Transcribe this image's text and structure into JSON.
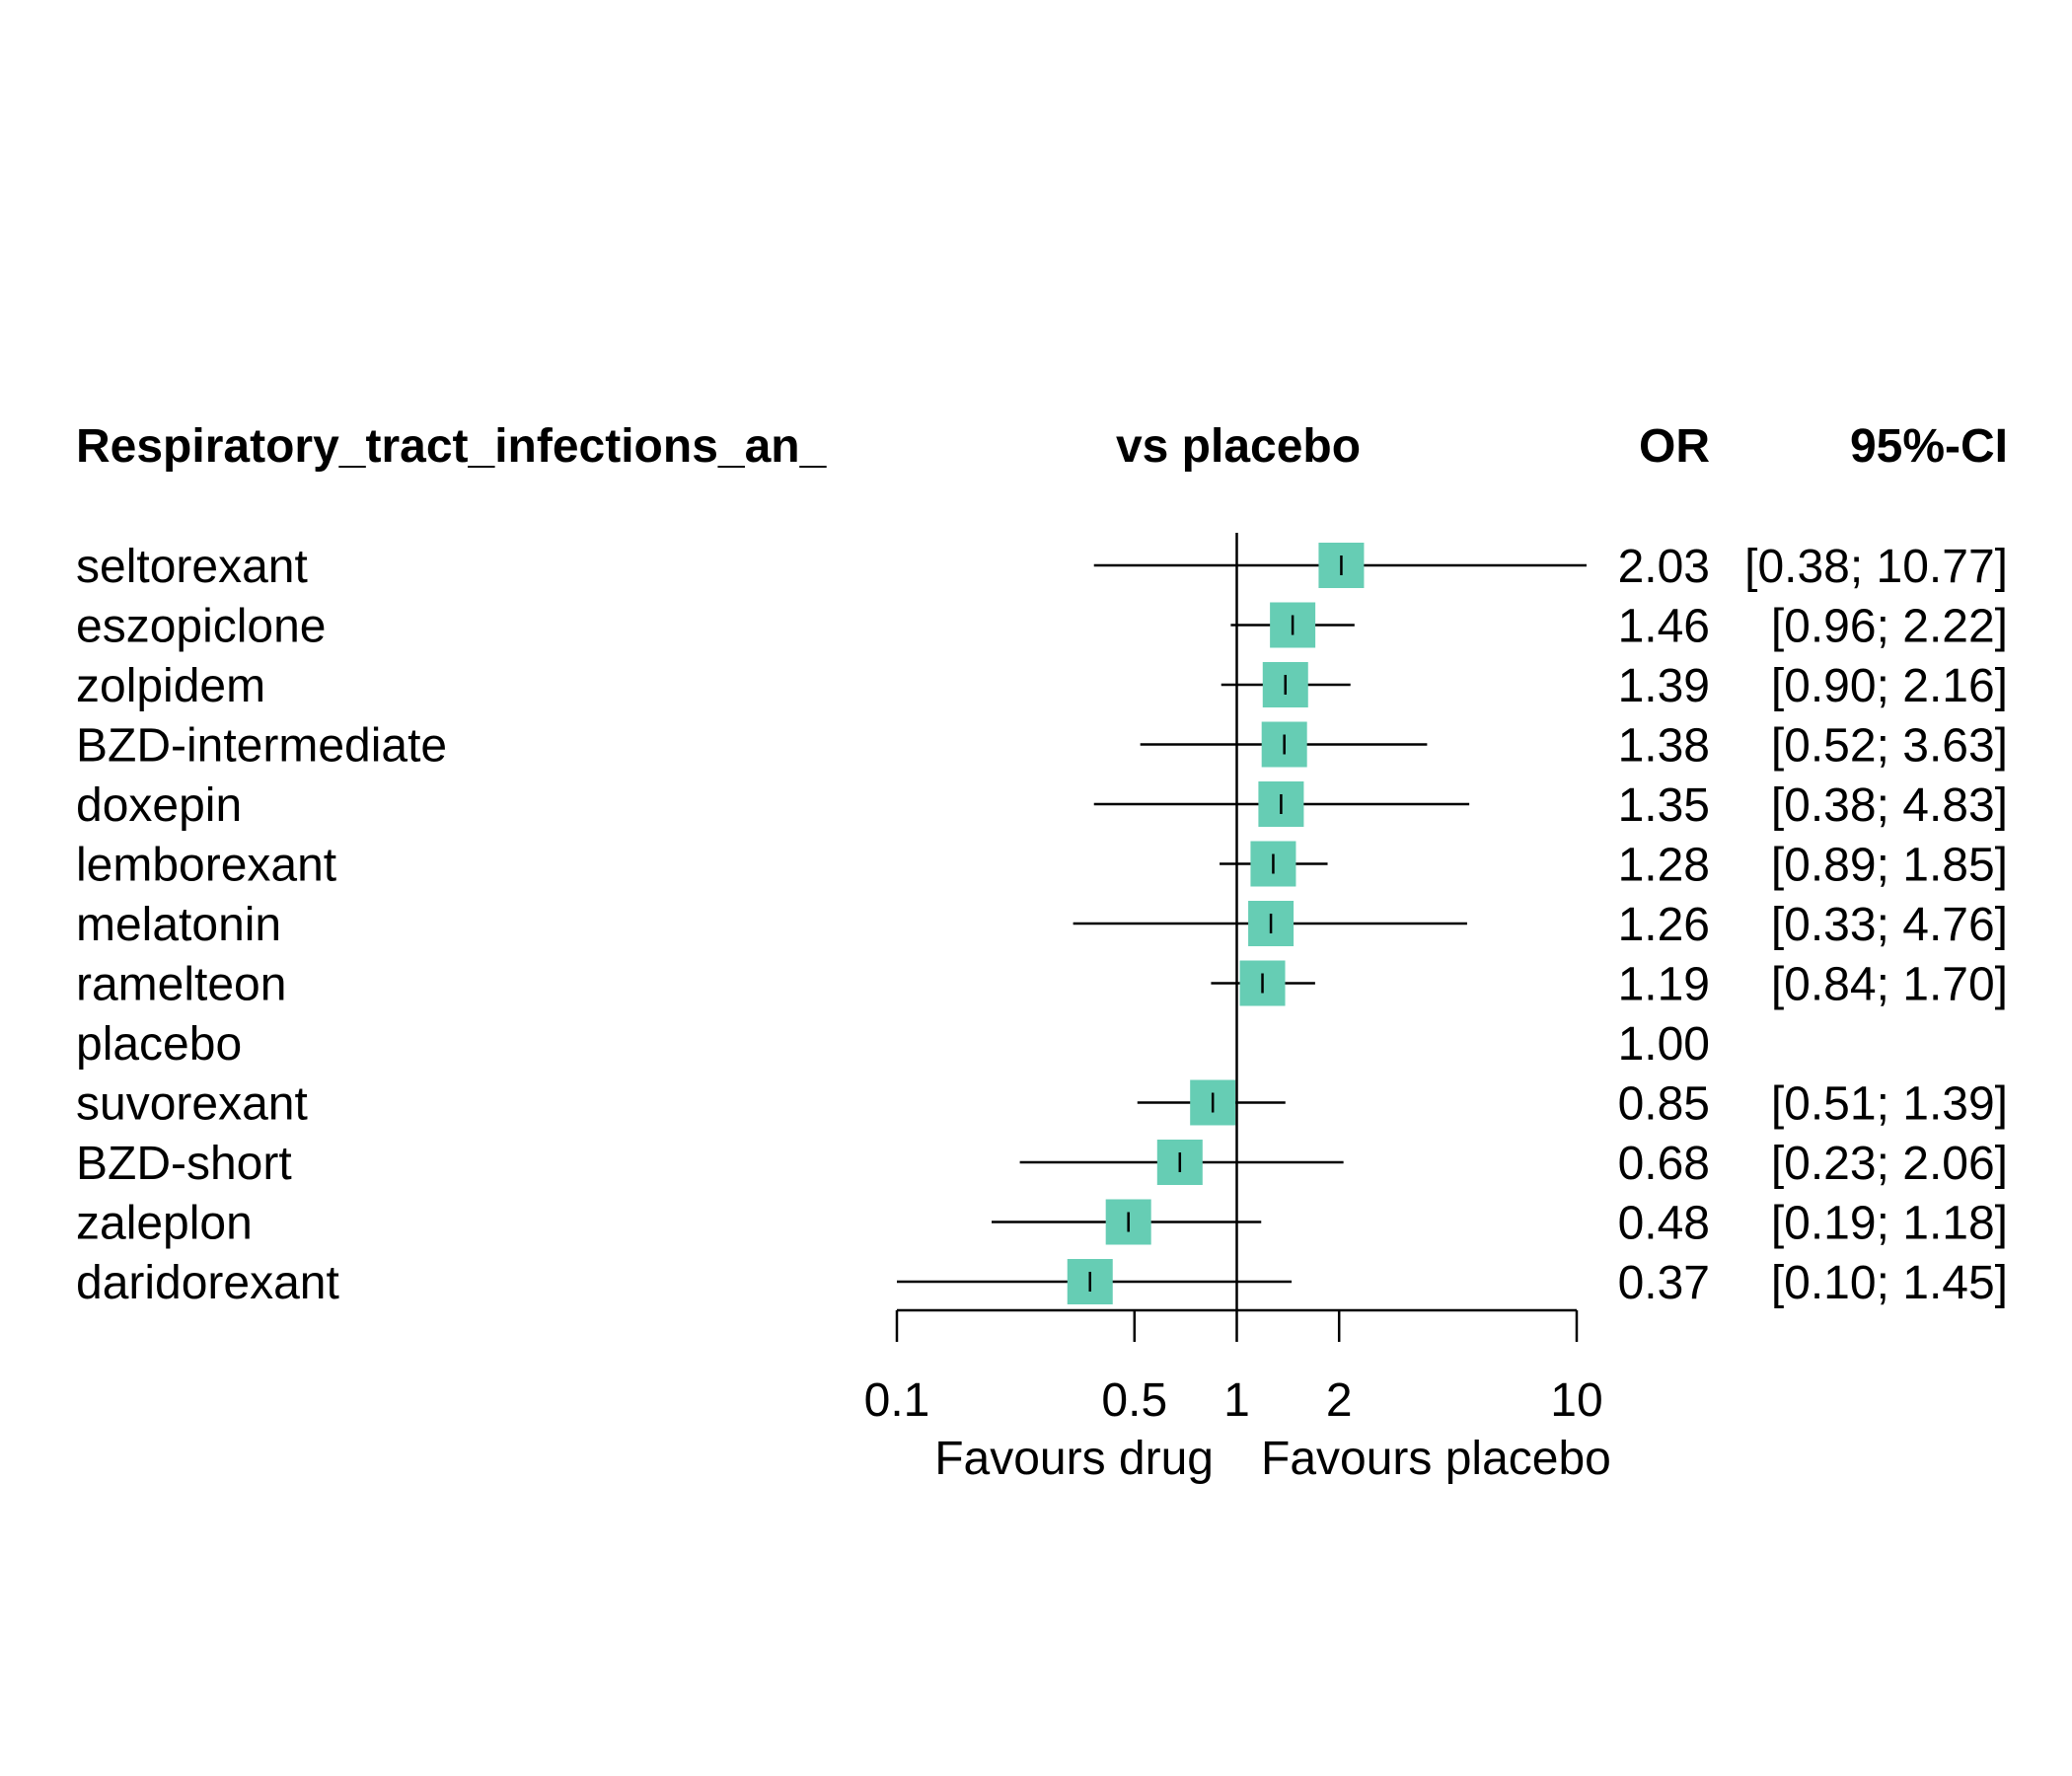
{
  "chart_data": {
    "type": "forest",
    "scale": "log",
    "xlim": [
      0.1,
      10
    ],
    "reference_value": 1,
    "marker_color": "#66CDB4",
    "headers": {
      "outcome": "Respiratory_tract_infections_an_",
      "comparison": "vs placebo",
      "effect": "OR",
      "ci": "95%-CI"
    },
    "favours": {
      "left": "Favours drug",
      "right": "Favours placebo"
    },
    "ticks": [
      {
        "value": 0.1,
        "label": "0.1"
      },
      {
        "value": 0.5,
        "label": "0.5"
      },
      {
        "value": 1,
        "label": "1"
      },
      {
        "value": 2,
        "label": "2"
      },
      {
        "value": 10,
        "label": "10"
      }
    ],
    "rows": [
      {
        "name": "seltorexant",
        "or": 2.03,
        "lower": 0.38,
        "upper": 10.77,
        "or_text": "2.03",
        "ci_text": "[0.38; 10.77]"
      },
      {
        "name": "eszopiclone",
        "or": 1.46,
        "lower": 0.96,
        "upper": 2.22,
        "or_text": "1.46",
        "ci_text": "[0.96;  2.22]"
      },
      {
        "name": "zolpidem",
        "or": 1.39,
        "lower": 0.9,
        "upper": 2.16,
        "or_text": "1.39",
        "ci_text": "[0.90;  2.16]"
      },
      {
        "name": "BZD-intermediate",
        "or": 1.38,
        "lower": 0.52,
        "upper": 3.63,
        "or_text": "1.38",
        "ci_text": "[0.52;  3.63]"
      },
      {
        "name": "doxepin",
        "or": 1.35,
        "lower": 0.38,
        "upper": 4.83,
        "or_text": "1.35",
        "ci_text": "[0.38;  4.83]"
      },
      {
        "name": "lemborexant",
        "or": 1.28,
        "lower": 0.89,
        "upper": 1.85,
        "or_text": "1.28",
        "ci_text": "[0.89;  1.85]"
      },
      {
        "name": "melatonin",
        "or": 1.26,
        "lower": 0.33,
        "upper": 4.76,
        "or_text": "1.26",
        "ci_text": "[0.33;  4.76]"
      },
      {
        "name": "ramelteon",
        "or": 1.19,
        "lower": 0.84,
        "upper": 1.7,
        "or_text": "1.19",
        "ci_text": "[0.84;  1.70]"
      },
      {
        "name": "placebo",
        "or": 1.0,
        "lower": null,
        "upper": null,
        "or_text": "1.00",
        "ci_text": ""
      },
      {
        "name": "suvorexant",
        "or": 0.85,
        "lower": 0.51,
        "upper": 1.39,
        "or_text": "0.85",
        "ci_text": "[0.51;  1.39]"
      },
      {
        "name": "BZD-short",
        "or": 0.68,
        "lower": 0.23,
        "upper": 2.06,
        "or_text": "0.68",
        "ci_text": "[0.23;  2.06]"
      },
      {
        "name": "zaleplon",
        "or": 0.48,
        "lower": 0.19,
        "upper": 1.18,
        "or_text": "0.48",
        "ci_text": "[0.19;  1.18]"
      },
      {
        "name": "daridorexant",
        "or": 0.37,
        "lower": 0.1,
        "upper": 1.45,
        "or_text": "0.37",
        "ci_text": "[0.10;  1.45]"
      }
    ]
  }
}
